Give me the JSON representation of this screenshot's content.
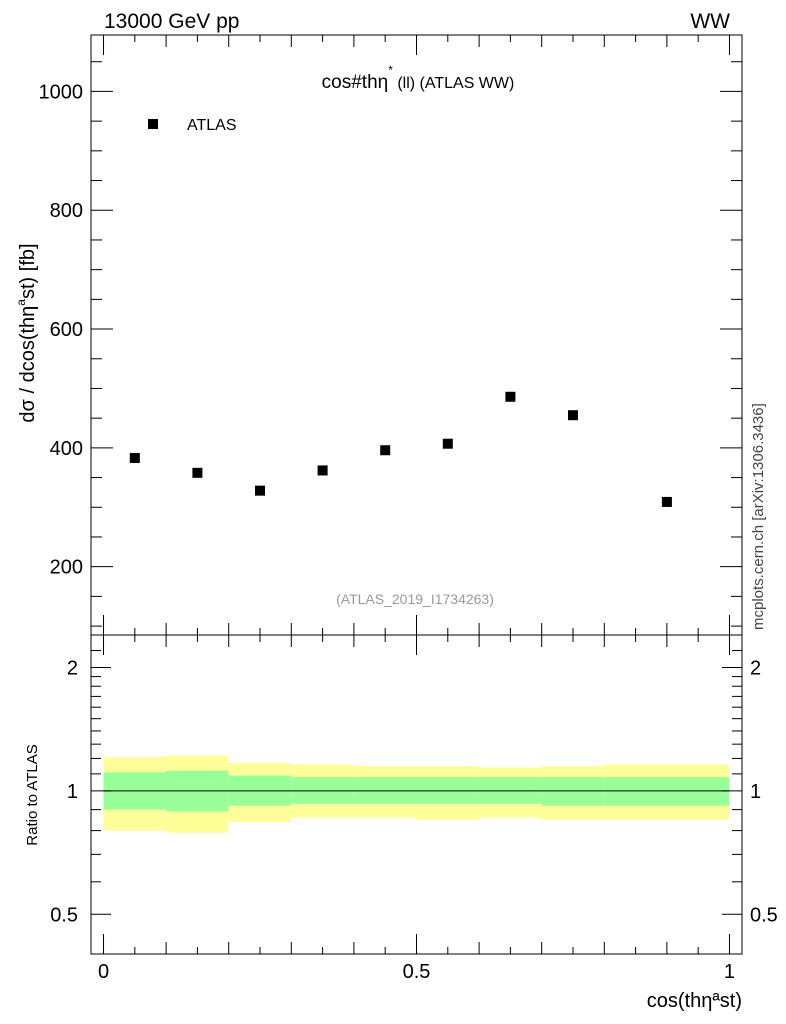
{
  "header": {
    "left_label": "13000 GeV pp",
    "right_label": "WW"
  },
  "side_label": "mcplots.cern.ch [arXiv:1306.3436]",
  "chart_data": [
    {
      "type": "scatter",
      "title": "cos#thη",
      "title_sup": "*",
      "title_rest": " (ll) (ATLAS WW)",
      "ylabel_parts": {
        "pre": "dσ / dcos(thη",
        "sup": "a",
        "post": "st) [fb]"
      },
      "ylim": [
        85,
        1095
      ],
      "yticks": [
        200,
        400,
        600,
        800,
        1000
      ],
      "yticks_minor_step": 50,
      "xlim": [
        -0.02,
        1.02
      ],
      "grid": false,
      "legend": {
        "position": "top-left",
        "entries": [
          {
            "name": "ATLAS",
            "marker": "square",
            "color": "#000000"
          }
        ]
      },
      "watermark": "(ATLAS_2019_I1734263)",
      "series": [
        {
          "name": "ATLAS",
          "x": [
            0.05,
            0.15,
            0.25,
            0.35,
            0.45,
            0.55,
            0.65,
            0.75,
            0.9
          ],
          "xerr": [
            0.05,
            0.05,
            0.05,
            0.05,
            0.05,
            0.05,
            0.05,
            0.05,
            0.1
          ],
          "y": [
            383,
            358,
            328,
            362,
            396,
            407,
            486,
            455,
            309
          ]
        }
      ]
    },
    {
      "type": "area",
      "ylabel": "Ratio to ATLAS",
      "ylim": [
        0.4,
        2.4
      ],
      "yticks": [
        0.5,
        1,
        2
      ],
      "ytick_labels": [
        "0.5",
        "1",
        "2"
      ],
      "xlim": [
        -0.02,
        1.02
      ],
      "xticks": [
        0,
        0.5,
        1
      ],
      "xtick_labels": [
        "0",
        "0.5",
        "1"
      ],
      "xlabel": "cos(thηªst)",
      "grid": false,
      "reference_line": 1,
      "bin_edges": [
        0,
        0.1,
        0.2,
        0.3,
        0.4,
        0.5,
        0.6,
        0.7,
        0.8,
        1.0
      ],
      "band_outer": {
        "color": "#ffff99",
        "low": [
          0.8,
          0.79,
          0.84,
          0.86,
          0.86,
          0.85,
          0.86,
          0.85,
          0.85
        ],
        "high": [
          1.21,
          1.22,
          1.17,
          1.16,
          1.15,
          1.15,
          1.14,
          1.15,
          1.16
        ]
      },
      "band_inner": {
        "color": "#99ff99",
        "low": [
          0.9,
          0.89,
          0.92,
          0.93,
          0.93,
          0.93,
          0.93,
          0.92,
          0.92
        ],
        "high": [
          1.11,
          1.12,
          1.09,
          1.08,
          1.08,
          1.08,
          1.08,
          1.08,
          1.08
        ]
      }
    }
  ]
}
